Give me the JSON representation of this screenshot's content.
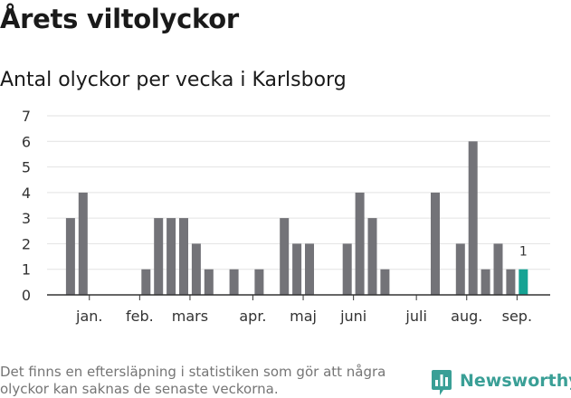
{
  "title": "Årets viltolyckor",
  "subtitle": "Antal olyckor per vecka i Karlsborg",
  "footnote": "Det finns en eftersläpning i statistiken som gör att några olyckor kan saknas de senaste veckorna.",
  "brand": {
    "name": "Newsworthy",
    "icon": "newsworthy-logo-icon",
    "color": "#3a9f96"
  },
  "colors": {
    "bar": "#737378",
    "highlight": "#16a394",
    "grid": "#e2e2e2",
    "axis": "#333333"
  },
  "chart_data": {
    "type": "bar",
    "x": [
      1,
      2,
      3,
      4,
      5,
      6,
      7,
      8,
      9,
      10,
      11,
      12,
      13,
      14,
      15,
      16,
      17,
      18,
      19,
      20,
      21,
      22,
      23,
      24,
      25,
      26,
      27,
      28,
      29,
      30,
      31,
      32,
      33,
      34,
      35,
      36,
      37,
      38
    ],
    "values": [
      0,
      3,
      4,
      0,
      0,
      0,
      0,
      1,
      3,
      3,
      3,
      2,
      1,
      0,
      1,
      0,
      1,
      0,
      3,
      2,
      2,
      0,
      0,
      2,
      4,
      3,
      1,
      0,
      0,
      0,
      4,
      0,
      2,
      6,
      1,
      2,
      1,
      1
    ],
    "highlight_index": 37,
    "data_labels": [
      {
        "index": 37,
        "text": "1"
      }
    ],
    "month_labels": [
      {
        "text": "jan.",
        "index": 2.5
      },
      {
        "text": "feb.",
        "index": 6.5
      },
      {
        "text": "mars",
        "index": 10.5
      },
      {
        "text": "apr.",
        "index": 15.5
      },
      {
        "text": "maj",
        "index": 19.5
      },
      {
        "text": "juni",
        "index": 23.5
      },
      {
        "text": "juli",
        "index": 28.5
      },
      {
        "text": "aug.",
        "index": 32.5
      },
      {
        "text": "sep.",
        "index": 36.5
      }
    ],
    "yticks": [
      0,
      1,
      2,
      3,
      4,
      5,
      6,
      7
    ],
    "ylim": [
      0,
      7
    ],
    "grid": true,
    "legend": "none"
  }
}
